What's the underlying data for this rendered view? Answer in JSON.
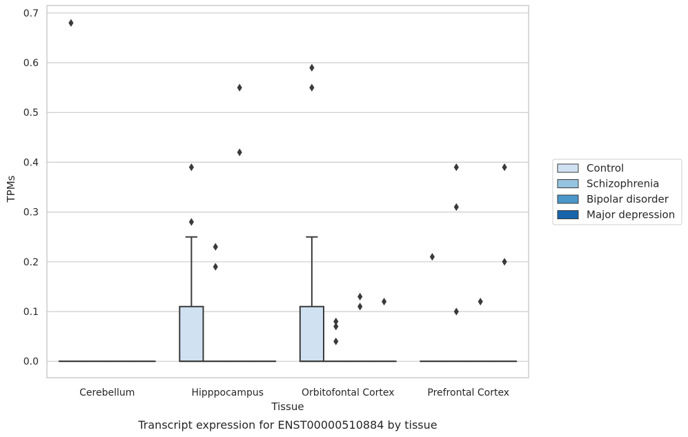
{
  "caption": "Transcript expression for ENST00000510884 by tissue",
  "chart_data": {
    "type": "box",
    "title": "",
    "xlabel": "Tissue",
    "ylabel": "TPMs",
    "ylim": [
      -0.033,
      0.715
    ],
    "yticks": [
      0.0,
      0.1,
      0.2,
      0.3,
      0.4,
      0.5,
      0.6,
      0.7
    ],
    "ytick_labels": [
      "0.0",
      "0.1",
      "0.2",
      "0.3",
      "0.4",
      "0.5",
      "0.6",
      "0.7"
    ],
    "grid": true,
    "legend_position": "right",
    "categories": [
      "Cerebellum",
      "Hipppocampus",
      "Orbitofontal Cortex",
      "Prefrontal Cortex"
    ],
    "series": [
      {
        "name": "Control",
        "color": "#d0e1f2",
        "boxes": [
          {
            "category": "Cerebellum",
            "q1": 0,
            "median": 0,
            "q3": 0,
            "whisker_low": 0,
            "whisker_high": 0,
            "outliers": [
              0.68
            ]
          },
          {
            "category": "Hipppocampus",
            "q1": 0,
            "median": 0,
            "q3": 0.11,
            "whisker_low": 0,
            "whisker_high": 0.25,
            "outliers": [
              0.28,
              0.39
            ]
          },
          {
            "category": "Orbitofontal Cortex",
            "q1": 0,
            "median": 0,
            "q3": 0.11,
            "whisker_low": 0,
            "whisker_high": 0.25,
            "outliers": [
              0.55,
              0.59
            ]
          },
          {
            "category": "Prefrontal Cortex",
            "q1": 0,
            "median": 0,
            "q3": 0,
            "whisker_low": 0,
            "whisker_high": 0,
            "outliers": [
              0.21
            ]
          }
        ]
      },
      {
        "name": "Schizophrenia",
        "color": "#94c4df",
        "boxes": [
          {
            "category": "Cerebellum",
            "q1": 0,
            "median": 0,
            "q3": 0,
            "whisker_low": 0,
            "whisker_high": 0,
            "outliers": []
          },
          {
            "category": "Hipppocampus",
            "q1": 0,
            "median": 0,
            "q3": 0,
            "whisker_low": 0,
            "whisker_high": 0,
            "outliers": [
              0.19,
              0.23
            ]
          },
          {
            "category": "Orbitofontal Cortex",
            "q1": 0,
            "median": 0,
            "q3": 0,
            "whisker_low": 0,
            "whisker_high": 0,
            "outliers": [
              0.04,
              0.07,
              0.08
            ]
          },
          {
            "category": "Prefrontal Cortex",
            "q1": 0,
            "median": 0,
            "q3": 0,
            "whisker_low": 0,
            "whisker_high": 0,
            "outliers": [
              0.1,
              0.31,
              0.39
            ]
          }
        ]
      },
      {
        "name": "Bipolar disorder",
        "color": "#4a98c9",
        "boxes": [
          {
            "category": "Cerebellum",
            "q1": 0,
            "median": 0,
            "q3": 0,
            "whisker_low": 0,
            "whisker_high": 0,
            "outliers": []
          },
          {
            "category": "Hipppocampus",
            "q1": 0,
            "median": 0,
            "q3": 0,
            "whisker_low": 0,
            "whisker_high": 0,
            "outliers": [
              0.42,
              0.55
            ]
          },
          {
            "category": "Orbitofontal Cortex",
            "q1": 0,
            "median": 0,
            "q3": 0,
            "whisker_low": 0,
            "whisker_high": 0,
            "outliers": [
              0.11,
              0.13
            ]
          },
          {
            "category": "Prefrontal Cortex",
            "q1": 0,
            "median": 0,
            "q3": 0,
            "whisker_low": 0,
            "whisker_high": 0,
            "outliers": [
              0.12
            ]
          }
        ]
      },
      {
        "name": "Major depression",
        "color": "#1764ab",
        "boxes": [
          {
            "category": "Cerebellum",
            "q1": 0,
            "median": 0,
            "q3": 0,
            "whisker_low": 0,
            "whisker_high": 0,
            "outliers": []
          },
          {
            "category": "Hipppocampus",
            "q1": 0,
            "median": 0,
            "q3": 0,
            "whisker_low": 0,
            "whisker_high": 0,
            "outliers": []
          },
          {
            "category": "Orbitofontal Cortex",
            "q1": 0,
            "median": 0,
            "q3": 0,
            "whisker_low": 0,
            "whisker_high": 0,
            "outliers": [
              0.12
            ]
          },
          {
            "category": "Prefrontal Cortex",
            "q1": 0,
            "median": 0,
            "q3": 0,
            "whisker_low": 0,
            "whisker_high": 0,
            "outliers": [
              0.2,
              0.39
            ]
          }
        ]
      }
    ],
    "colors": {
      "grid": "#cccccc",
      "frame": "#cccccc",
      "box_edge": "#3a3a3a",
      "outlier": "#3a3a3a"
    }
  }
}
